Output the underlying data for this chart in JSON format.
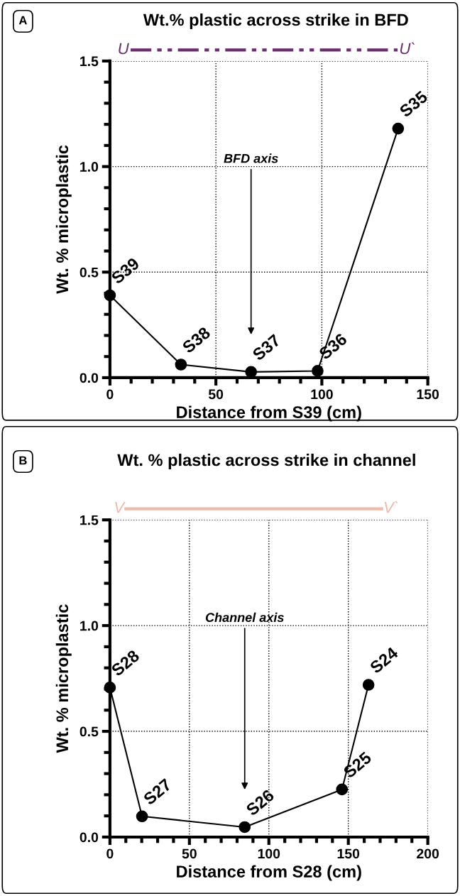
{
  "chart_data": [
    {
      "type": "line",
      "title": "Wt.% plastic across strike in BFD",
      "xlabel": "Distance from S39 (cm)",
      "ylabel": "Wt. % microplastic",
      "x": [
        0,
        33.5,
        66.6,
        98,
        136
      ],
      "series": [
        {
          "color": "#000000",
          "values": [
            0.39,
            0.062,
            0.027,
            0.032,
            1.18
          ]
        }
      ],
      "xlim": [
        0,
        150
      ],
      "xticks": [
        0,
        50,
        100,
        150
      ],
      "ylim": [
        0,
        1.5
      ],
      "yticks": [
        {
          "value": 0,
          "label": "0.0"
        },
        {
          "value": 0.5,
          "label": "0.5"
        },
        {
          "value": 1,
          "label": "1.0"
        },
        {
          "value": 1.5,
          "label": "1.5"
        }
      ],
      "grid": true,
      "marker": "circle",
      "line_style": "solid",
      "annotations": [
        "A",
        "U",
        "U`",
        "BFD axis",
        {
          "text": "S39",
          "x": 0,
          "y": 0.39
        },
        {
          "text": "S38",
          "x": 33.5,
          "y": 0.062
        },
        {
          "text": "S37",
          "x": 66.6,
          "y": 0.027
        },
        {
          "text": "S36",
          "x": 98,
          "y": 0.032
        },
        {
          "text": "S35",
          "x": 136,
          "y": 1.18
        }
      ]
    },
    {
      "type": "line",
      "title": "Wt. % plastic across strike in channel",
      "xlabel": "Distance from S28 (cm)",
      "ylabel": "Wt. % microplastic",
      "x": [
        0,
        20.2,
        84.8,
        146,
        162.7
      ],
      "series": [
        {
          "color": "#000000",
          "values": [
            0.707,
            0.098,
            0.047,
            0.225,
            0.72
          ]
        }
      ],
      "xlim": [
        0,
        200
      ],
      "xticks": [
        0,
        50,
        100,
        150,
        200
      ],
      "ylim": [
        0,
        1.5
      ],
      "yticks": [
        {
          "value": 0,
          "label": "0.0"
        },
        {
          "value": 0.5,
          "label": "0.5"
        },
        {
          "value": 1,
          "label": "1.0"
        },
        {
          "value": 1.5,
          "label": "1.5"
        }
      ],
      "grid": true,
      "marker": "circle",
      "line_style": "solid",
      "annotations": [
        "B",
        "V",
        "V`",
        "Channel axis",
        {
          "text": "S28",
          "x": 0,
          "y": 0.707
        },
        {
          "text": "S27",
          "x": 20.2,
          "y": 0.098
        },
        {
          "text": "S26",
          "x": 84.8,
          "y": 0.047
        },
        {
          "text": "S25",
          "x": 146,
          "y": 0.225
        },
        {
          "text": "S24",
          "x": 162.7,
          "y": 0.72
        }
      ]
    }
  ]
}
